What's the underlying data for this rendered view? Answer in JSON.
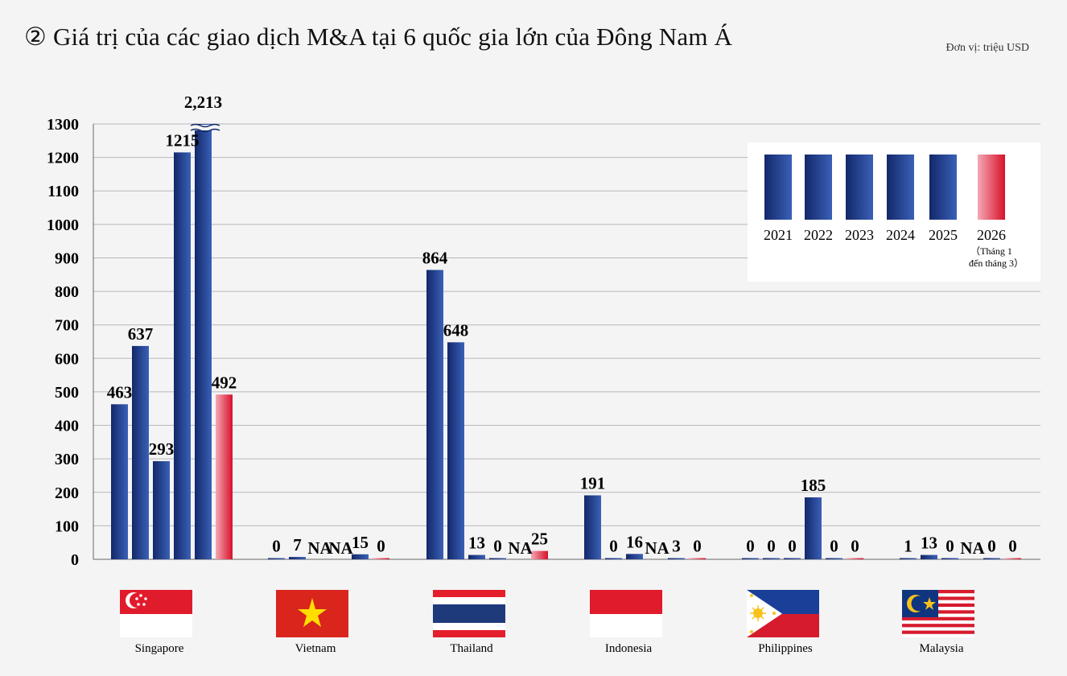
{
  "title": "② Giá trị của các giao dịch M&A tại 6 quốc gia lớn của Đông Nam Á",
  "unit": "Đơn vị: triệu USD",
  "colors": {
    "bar_dark": "#13286a",
    "bar_light": "#3a60b6",
    "bar_red_dark": "#d8102a",
    "bar_red_light": "#f3a9b4",
    "grid": "#b8b8bc",
    "axis": "#666666"
  },
  "chart_data": {
    "type": "bar",
    "title": "② Giá trị của các giao dịch M&A tại 6 quốc gia lớn của Đông Nam Á",
    "xlabel": "",
    "ylabel": "",
    "unit": "Đơn vị: triệu USD",
    "ylim": [
      0,
      1300
    ],
    "yticks": [
      0,
      100,
      200,
      300,
      400,
      500,
      600,
      700,
      800,
      900,
      1000,
      1100,
      1200,
      1300
    ],
    "grid": true,
    "legend_position": "top-right",
    "axis_break": {
      "country": "Singapore",
      "year": "2025",
      "true_value_label": "2,213"
    },
    "categories": [
      "Singapore",
      "Vietnam",
      "Thailand",
      "Indonesia",
      "Philippines",
      "Malaysia"
    ],
    "series": [
      {
        "name": "2021",
        "values": [
          463,
          0,
          864,
          191,
          0,
          1
        ],
        "labels": [
          "463",
          "0",
          "864",
          "191",
          "0",
          "1"
        ]
      },
      {
        "name": "2022",
        "values": [
          637,
          7,
          648,
          0,
          0,
          13
        ],
        "labels": [
          "637",
          "7",
          "648",
          "0",
          "0",
          "13"
        ]
      },
      {
        "name": "2023",
        "values": [
          293,
          null,
          13,
          16,
          0,
          0
        ],
        "labels": [
          "293",
          "NA",
          "13",
          "16",
          "0",
          "0"
        ]
      },
      {
        "name": "2024",
        "values": [
          1215,
          null,
          0,
          null,
          185,
          null
        ],
        "labels": [
          "1215",
          "NA",
          "0",
          "NA",
          "185",
          "NA"
        ]
      },
      {
        "name": "2025",
        "values": [
          2213,
          15,
          null,
          3,
          0,
          0
        ],
        "labels": [
          "2,213",
          "15",
          "NA",
          "3",
          "0",
          "0"
        ]
      },
      {
        "name": "2026",
        "values": [
          492,
          0,
          25,
          0,
          0,
          0
        ],
        "labels": [
          "492",
          "0",
          "25",
          "0",
          "0",
          "0"
        ]
      }
    ],
    "legend": {
      "years": [
        "2021",
        "2022",
        "2023",
        "2024",
        "2025",
        "2026"
      ],
      "note_line1": "（Tháng 1",
      "note_line2": "đến tháng 3）"
    }
  }
}
